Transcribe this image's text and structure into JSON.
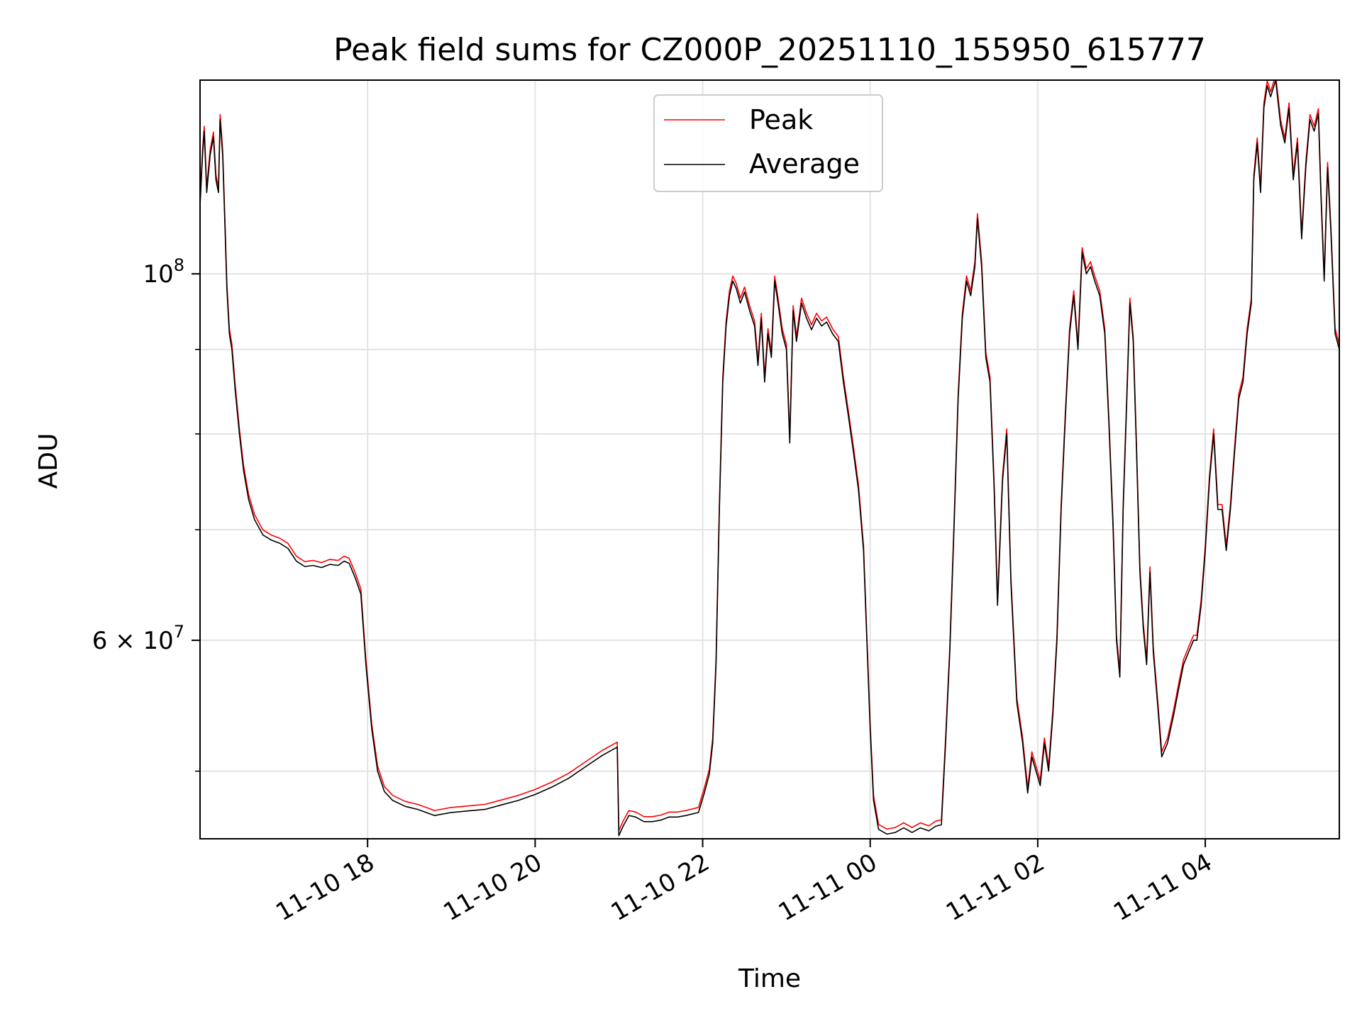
{
  "chart_data": {
    "type": "line",
    "title": "Peak field sums for CZ000P_20251110_155950_615777",
    "xlabel": "Time",
    "ylabel": "ADU",
    "yscale": "log",
    "ylim": [
      45500000,
      131000000
    ],
    "xlim_hours": [
      16.0,
      29.6
    ],
    "grid": true,
    "legend_position": "top-center",
    "x_ticks": [
      {
        "hours": 18,
        "label": "11-10 18"
      },
      {
        "hours": 20,
        "label": "11-10 20"
      },
      {
        "hours": 22,
        "label": "11-10 22"
      },
      {
        "hours": 24,
        "label": "11-11 00"
      },
      {
        "hours": 26,
        "label": "11-11 02"
      },
      {
        "hours": 28,
        "label": "11-11 04"
      }
    ],
    "y_major_ticks": [
      {
        "value": 60000000,
        "base": "6",
        "exp": "7",
        "label": "6 × 10^7"
      },
      {
        "value": 100000000,
        "base": "10",
        "exp": "8",
        "label": "10^8"
      }
    ],
    "y_minor_ticks": [
      50000000,
      70000000,
      80000000,
      90000000
    ],
    "series": [
      {
        "name": "Peak",
        "color": "#ff0000",
        "offset_factor": 1.007
      },
      {
        "name": "Average",
        "color": "#000000",
        "offset_factor": 1.0
      }
    ],
    "average_points": [
      [
        16.0,
        110.0
      ],
      [
        16.03,
        118.0
      ],
      [
        16.05,
        122.0
      ],
      [
        16.08,
        112.0
      ],
      [
        16.12,
        118.0
      ],
      [
        16.16,
        121.0
      ],
      [
        16.19,
        114.0
      ],
      [
        16.22,
        112.0
      ],
      [
        16.24,
        124.0
      ],
      [
        16.27,
        118.0
      ],
      [
        16.3,
        106.0
      ],
      [
        16.32,
        98.0
      ],
      [
        16.35,
        92.0
      ],
      [
        16.38,
        90.0
      ],
      [
        16.42,
        85.0
      ],
      [
        16.47,
        80.0
      ],
      [
        16.52,
        76.0
      ],
      [
        16.58,
        73.0
      ],
      [
        16.65,
        71.0
      ],
      [
        16.75,
        69.5
      ],
      [
        16.85,
        69.0
      ],
      [
        16.95,
        68.7
      ],
      [
        17.05,
        68.2
      ],
      [
        17.15,
        67.0
      ],
      [
        17.25,
        66.5
      ],
      [
        17.35,
        66.6
      ],
      [
        17.45,
        66.4
      ],
      [
        17.55,
        66.7
      ],
      [
        17.65,
        66.6
      ],
      [
        17.72,
        67.0
      ],
      [
        17.78,
        66.8
      ],
      [
        17.85,
        65.5
      ],
      [
        17.92,
        64.0
      ],
      [
        17.98,
        58.0
      ],
      [
        18.05,
        53.0
      ],
      [
        18.12,
        50.0
      ],
      [
        18.2,
        48.6
      ],
      [
        18.3,
        48.0
      ],
      [
        18.45,
        47.6
      ],
      [
        18.6,
        47.4
      ],
      [
        18.8,
        47.0
      ],
      [
        19.0,
        47.2
      ],
      [
        19.2,
        47.3
      ],
      [
        19.4,
        47.4
      ],
      [
        19.6,
        47.7
      ],
      [
        19.8,
        48.0
      ],
      [
        20.0,
        48.4
      ],
      [
        20.2,
        48.9
      ],
      [
        20.4,
        49.5
      ],
      [
        20.6,
        50.3
      ],
      [
        20.8,
        51.1
      ],
      [
        20.98,
        51.7
      ],
      [
        21.0,
        45.7
      ],
      [
        21.05,
        46.3
      ],
      [
        21.12,
        47.0
      ],
      [
        21.2,
        46.9
      ],
      [
        21.3,
        46.6
      ],
      [
        21.4,
        46.6
      ],
      [
        21.5,
        46.7
      ],
      [
        21.6,
        46.9
      ],
      [
        21.7,
        46.9
      ],
      [
        21.8,
        47.0
      ],
      [
        21.95,
        47.2
      ],
      [
        22.02,
        48.5
      ],
      [
        22.08,
        49.8
      ],
      [
        22.12,
        52.0
      ],
      [
        22.16,
        58.0
      ],
      [
        22.2,
        72.0
      ],
      [
        22.24,
        86.0
      ],
      [
        22.28,
        93.0
      ],
      [
        22.32,
        97.0
      ],
      [
        22.36,
        99.0
      ],
      [
        22.4,
        98.0
      ],
      [
        22.45,
        96.0
      ],
      [
        22.5,
        97.5
      ],
      [
        22.56,
        95.0
      ],
      [
        22.62,
        93.0
      ],
      [
        22.66,
        88.0
      ],
      [
        22.7,
        94.0
      ],
      [
        22.74,
        86.0
      ],
      [
        22.78,
        92.0
      ],
      [
        22.82,
        89.0
      ],
      [
        22.86,
        99.0
      ],
      [
        22.9,
        96.0
      ],
      [
        22.95,
        92.0
      ],
      [
        23.0,
        90.0
      ],
      [
        23.04,
        79.0
      ],
      [
        23.08,
        95.0
      ],
      [
        23.12,
        91.0
      ],
      [
        23.18,
        96.0
      ],
      [
        23.24,
        94.0
      ],
      [
        23.3,
        92.5
      ],
      [
        23.36,
        94.0
      ],
      [
        23.42,
        93.0
      ],
      [
        23.48,
        93.5
      ],
      [
        23.55,
        92.0
      ],
      [
        23.62,
        91.0
      ],
      [
        23.68,
        86.0
      ],
      [
        23.74,
        82.0
      ],
      [
        23.8,
        78.0
      ],
      [
        23.86,
        74.0
      ],
      [
        23.92,
        68.0
      ],
      [
        23.96,
        60.0
      ],
      [
        24.0,
        53.0
      ],
      [
        24.04,
        48.0
      ],
      [
        24.1,
        46.1
      ],
      [
        24.2,
        45.8
      ],
      [
        24.3,
        45.9
      ],
      [
        24.4,
        46.2
      ],
      [
        24.5,
        45.9
      ],
      [
        24.6,
        46.2
      ],
      [
        24.7,
        46.0
      ],
      [
        24.78,
        46.3
      ],
      [
        24.85,
        46.4
      ],
      [
        24.9,
        52.0
      ],
      [
        24.95,
        59.0
      ],
      [
        25.0,
        70.0
      ],
      [
        25.05,
        84.0
      ],
      [
        25.1,
        94.0
      ],
      [
        25.15,
        99.0
      ],
      [
        25.2,
        97.0
      ],
      [
        25.25,
        101.0
      ],
      [
        25.28,
        108.0
      ],
      [
        25.33,
        101.0
      ],
      [
        25.38,
        89.0
      ],
      [
        25.43,
        86.0
      ],
      [
        25.48,
        74.0
      ],
      [
        25.52,
        63.0
      ],
      [
        25.58,
        75.0
      ],
      [
        25.63,
        80.0
      ],
      [
        25.68,
        65.0
      ],
      [
        25.75,
        55.0
      ],
      [
        25.82,
        52.0
      ],
      [
        25.88,
        48.5
      ],
      [
        25.93,
        51.0
      ],
      [
        25.98,
        50.0
      ],
      [
        26.03,
        49.0
      ],
      [
        26.08,
        52.0
      ],
      [
        26.13,
        50.0
      ],
      [
        26.18,
        54.0
      ],
      [
        26.23,
        60.0
      ],
      [
        26.28,
        72.0
      ],
      [
        26.33,
        82.0
      ],
      [
        26.38,
        92.0
      ],
      [
        26.43,
        97.0
      ],
      [
        26.48,
        90.0
      ],
      [
        26.53,
        103.0
      ],
      [
        26.58,
        100.0
      ],
      [
        26.63,
        101.0
      ],
      [
        26.68,
        99.0
      ],
      [
        26.74,
        97.0
      ],
      [
        26.8,
        92.0
      ],
      [
        26.85,
        81.0
      ],
      [
        26.9,
        70.0
      ],
      [
        26.94,
        60.0
      ],
      [
        26.98,
        57.0
      ],
      [
        27.02,
        72.0
      ],
      [
        27.06,
        83.0
      ],
      [
        27.1,
        96.0
      ],
      [
        27.14,
        91.0
      ],
      [
        27.18,
        78.0
      ],
      [
        27.22,
        66.0
      ],
      [
        27.26,
        61.0
      ],
      [
        27.3,
        58.0
      ],
      [
        27.34,
        66.0
      ],
      [
        27.38,
        59.0
      ],
      [
        27.43,
        55.0
      ],
      [
        27.48,
        51.0
      ],
      [
        27.55,
        52.0
      ],
      [
        27.62,
        54.0
      ],
      [
        27.68,
        56.0
      ],
      [
        27.74,
        58.0
      ],
      [
        27.8,
        59.0
      ],
      [
        27.86,
        60.0
      ],
      [
        27.9,
        60.0
      ],
      [
        27.95,
        63.0
      ],
      [
        28.0,
        68.0
      ],
      [
        28.05,
        75.0
      ],
      [
        28.1,
        80.0
      ],
      [
        28.15,
        72.0
      ],
      [
        28.2,
        72.0
      ],
      [
        28.25,
        68.0
      ],
      [
        28.3,
        72.0
      ],
      [
        28.35,
        78.0
      ],
      [
        28.4,
        84.0
      ],
      [
        28.45,
        86.0
      ],
      [
        28.5,
        92.0
      ],
      [
        28.55,
        96.0
      ],
      [
        28.58,
        114.0
      ],
      [
        28.62,
        120.0
      ],
      [
        28.66,
        112.0
      ],
      [
        28.7,
        126.0
      ],
      [
        28.74,
        130.0
      ],
      [
        28.78,
        128.0
      ],
      [
        28.84,
        131.0
      ],
      [
        28.9,
        123.0
      ],
      [
        28.95,
        120.0
      ],
      [
        29.0,
        126.0
      ],
      [
        29.05,
        114.0
      ],
      [
        29.1,
        120.0
      ],
      [
        29.15,
        105.0
      ],
      [
        29.2,
        116.0
      ],
      [
        29.25,
        124.0
      ],
      [
        29.3,
        122.0
      ],
      [
        29.35,
        125.0
      ],
      [
        29.38,
        112.0
      ],
      [
        29.42,
        99.0
      ],
      [
        29.46,
        116.0
      ],
      [
        29.5,
        106.0
      ],
      [
        29.55,
        92.0
      ],
      [
        29.6,
        90.0
      ]
    ]
  }
}
